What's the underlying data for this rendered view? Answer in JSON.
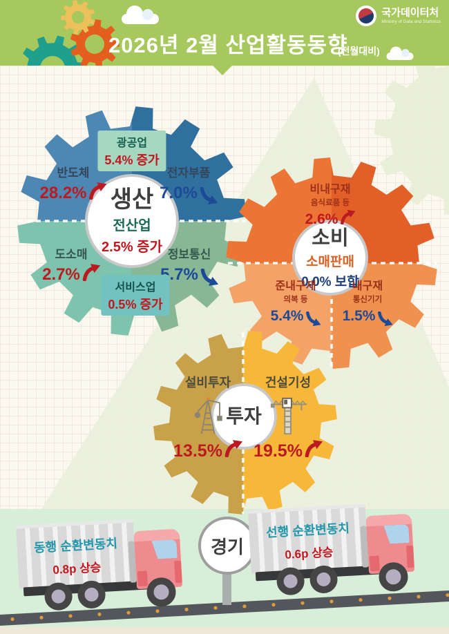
{
  "header": {
    "title": "2026년  2월 산업활동동향",
    "compare_note": "(전월대비)",
    "agency": "국가데이터처",
    "agency_en": "Ministry of Data and Statistics"
  },
  "production_gear": {
    "center_title": "생산",
    "center_sub": "전산업",
    "center_value": "2.5% 증가",
    "mining_label": "광공업",
    "mining_value": "5.4% 증가",
    "semiconductor_label": "반도체",
    "semiconductor_value": "28.2%",
    "electronics_label": "전자부품",
    "electronics_value": "7.0%",
    "wholesale_label": "도소매",
    "wholesale_value": "2.7%",
    "ict_label": "정보통신",
    "ict_value": "5.7%",
    "services_label": "서비스업",
    "services_value": "0.5% 증가"
  },
  "consumption_gear": {
    "center_title": "소비",
    "center_sub": "소매판매",
    "center_value": "0.0% 보합",
    "nondurable_label": "비내구재",
    "nondurable_sub": "음식료품 등",
    "nondurable_value": "2.6%",
    "semidurable_label": "준내구재",
    "semidurable_sub": "의복 등",
    "semidurable_value": "5.4%",
    "durable_label": "내구재",
    "durable_sub": "통신기기",
    "durable_value": "1.5%"
  },
  "investment_gear": {
    "center_title": "투자",
    "facility_label": "설비투자",
    "facility_value": "13.5%",
    "construction_label": "건설기성",
    "construction_value": "19.5%"
  },
  "business_cycle": {
    "sign_label": "경기",
    "coincident_label": "동행 순환변동치",
    "coincident_value": "0.8p 상승",
    "leading_label": "선행 순환변동치",
    "leading_value": "0.6p 상승"
  },
  "icons": {
    "up_arrow": "curved-up-right-arrow",
    "down_arrow": "curved-down-right-arrow",
    "facility_icon": "oil-derrick",
    "construction_icon": "tower-crane",
    "logo_icon": "taegeuk-symbol",
    "decor": [
      "gear",
      "cloud",
      "mountain",
      "truck",
      "road"
    ]
  },
  "palette": {
    "header_green": "#a6c85c",
    "mountain_green": "#e9efda",
    "faint_gear": "#e8edd5",
    "panel_green": "#d5edd6",
    "cream_strip": "#efe8d8",
    "road_gray": "#53565a",
    "road_dot": "#e09b3e",
    "production_top_left": "#4d87b4",
    "production_top_right": "#2f709e",
    "production_bottom_left": "#7ec3ae",
    "production_bottom_right": "#87b795",
    "consumption_top_left": "#ec7434",
    "consumption_top_right": "#e26028",
    "consumption_bottom_left": "#f3a367",
    "consumption_bottom_right": "#ef9250",
    "investment_left": "#c9a148",
    "investment_right": "#f7b83a",
    "up_red": "#bb1b20",
    "down_navy": "#1d4a96",
    "truck_text_teal": "#2297ab"
  }
}
